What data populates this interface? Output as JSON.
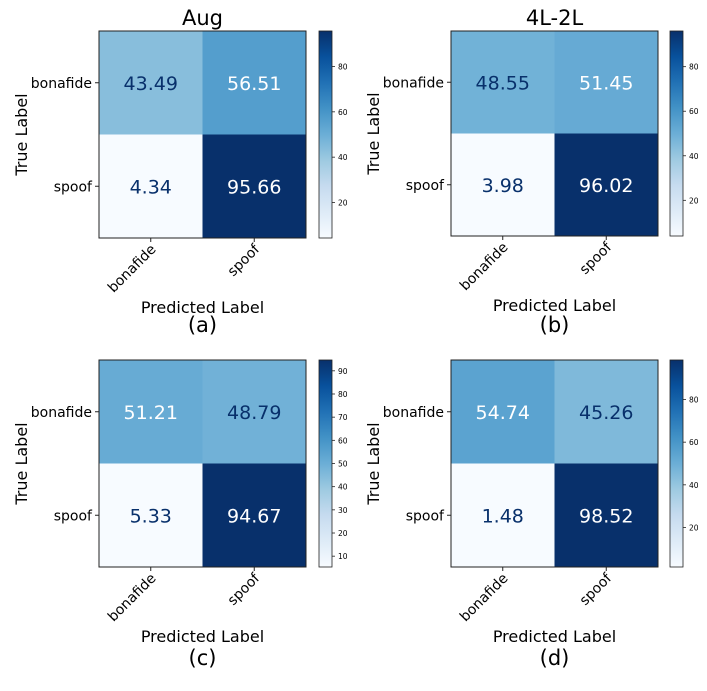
{
  "chart_data": [
    {
      "type": "heatmap",
      "title": "Aug",
      "panel_label": "(a)",
      "xlabel": "Predicted Label",
      "ylabel": "True Label",
      "x_categories": [
        "bonafide",
        "spoof"
      ],
      "y_categories": [
        "bonafide",
        "spoof"
      ],
      "values": [
        [
          "43.49",
          "56.51"
        ],
        [
          "4.34",
          "95.66"
        ]
      ],
      "colorbar": {
        "range": [
          4.34,
          95.66
        ],
        "ticks": [
          "20",
          "40",
          "60",
          "80"
        ]
      }
    },
    {
      "type": "heatmap",
      "title": "4L-2L",
      "panel_label": "(b)",
      "xlabel": "Predicted Label",
      "ylabel": "True Label",
      "x_categories": [
        "bonafide",
        "spoof"
      ],
      "y_categories": [
        "bonafide",
        "spoof"
      ],
      "values": [
        [
          "48.55",
          "51.45"
        ],
        [
          "3.98",
          "96.02"
        ]
      ],
      "colorbar": {
        "range": [
          3.98,
          96.02
        ],
        "ticks": [
          "20",
          "40",
          "60",
          "80"
        ]
      }
    },
    {
      "type": "heatmap",
      "title": "",
      "panel_label": "(c)",
      "xlabel": "Predicted Label",
      "ylabel": "True Label",
      "x_categories": [
        "bonafide",
        "spoof"
      ],
      "y_categories": [
        "bonafide",
        "spoof"
      ],
      "values": [
        [
          "51.21",
          "48.79"
        ],
        [
          "5.33",
          "94.67"
        ]
      ],
      "colorbar": {
        "range": [
          5.33,
          94.67
        ],
        "ticks": [
          "10",
          "20",
          "30",
          "40",
          "50",
          "60",
          "70",
          "80",
          "90"
        ]
      }
    },
    {
      "type": "heatmap",
      "title": "",
      "panel_label": "(d)",
      "xlabel": "Predicted Label",
      "ylabel": "True Label",
      "x_categories": [
        "bonafide",
        "spoof"
      ],
      "y_categories": [
        "bonafide",
        "spoof"
      ],
      "values": [
        [
          "54.74",
          "45.26"
        ],
        [
          "1.48",
          "98.52"
        ]
      ],
      "colorbar": {
        "range": [
          1.48,
          98.52
        ],
        "ticks": [
          "20",
          "40",
          "60",
          "80"
        ]
      }
    }
  ]
}
